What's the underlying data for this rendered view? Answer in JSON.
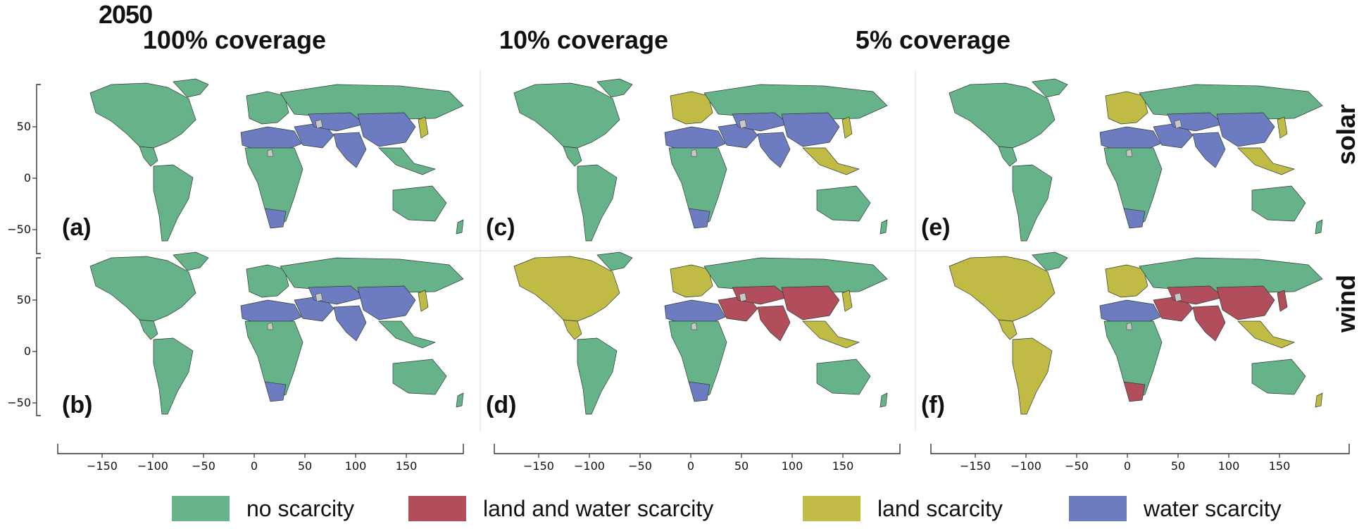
{
  "figure": {
    "year": "2050",
    "columns": [
      "100% coverage",
      "10% coverage",
      "5% coverage"
    ],
    "rows": [
      "solar",
      "wind"
    ],
    "panels": [
      "(a)",
      "(b)",
      "(c)",
      "(d)",
      "(e)",
      "(f)"
    ],
    "y_ticks": [
      "50",
      "0",
      "−50"
    ],
    "x_ticks": [
      "−150",
      "−100",
      "−50",
      "0",
      "50",
      "100",
      "150"
    ]
  },
  "legend": [
    {
      "label": "no scarcity",
      "color": "#66b38a"
    },
    {
      "label": "land and water scarcity",
      "color": "#b24d5c"
    },
    {
      "label": "land scarcity",
      "color": "#bfbb45"
    },
    {
      "label": "water scarcity",
      "color": "#6d7cc0"
    }
  ],
  "colors": {
    "none": "#66b38a",
    "landwater": "#b24d5c",
    "land": "#bfbb45",
    "water": "#6d7cc0",
    "nodata": "#c8c8c8"
  }
}
